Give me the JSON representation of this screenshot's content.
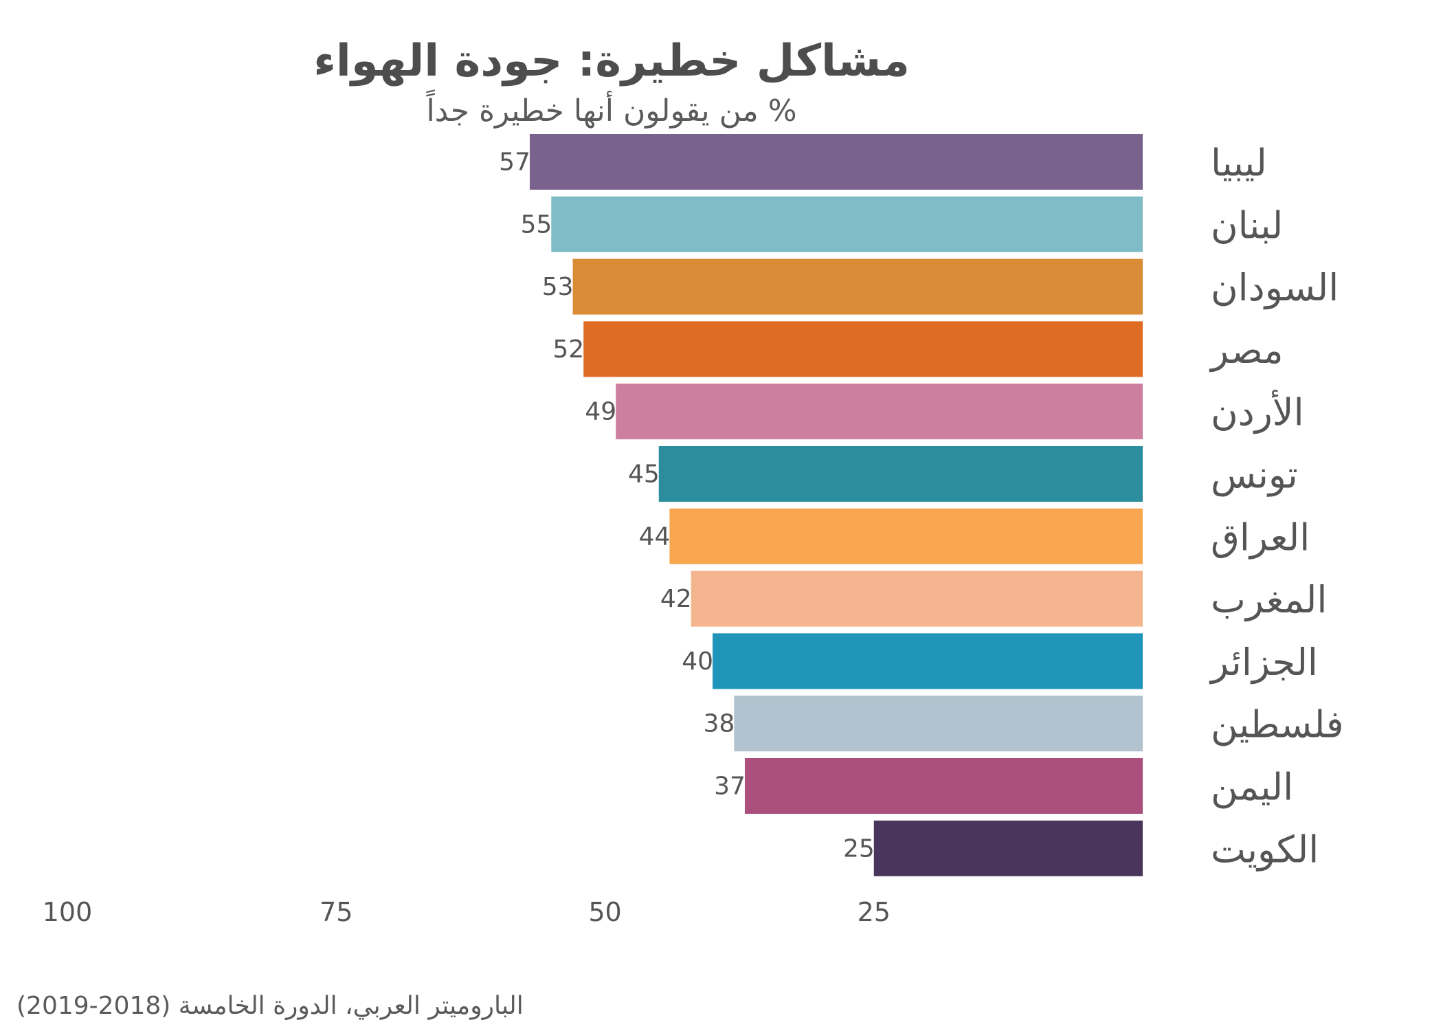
{
  "chart_data": {
    "type": "bar",
    "orientation": "horizontal",
    "title": "مشاكل خطيرة: جودة الهواء",
    "subtitle": "% من يقولون أنها خطيرة جداً",
    "source": "الباروميتر العربي، الدورة الخامسة (2018-2019)",
    "categories": [
      "ليبيا",
      "لبنان",
      "السودان",
      "مصر",
      "الأردن",
      "تونس",
      "العراق",
      "المغرب",
      "الجزائر",
      "فلسطين",
      "اليمن",
      "الكويت"
    ],
    "values": [
      57,
      55,
      53,
      52,
      49,
      45,
      44,
      42,
      40,
      38,
      37,
      25
    ],
    "data_labels": [
      "57",
      "55",
      "53",
      "52",
      "49",
      "45",
      "44",
      "42",
      "40",
      "38",
      "37",
      "25"
    ],
    "colors": [
      "#7a628f",
      "#80bbc8",
      "#d98b36",
      "#de6c22",
      "#cd7fa0",
      "#2c8e9d",
      "#f8a64f",
      "#f4b48d",
      "#2195b9",
      "#b2c3cf",
      "#ab4f7d",
      "#4a365d"
    ],
    "xlim": [
      0,
      100
    ],
    "x_reversed": true,
    "x_ticks": [
      100,
      75,
      50,
      25
    ],
    "x_tick_labels": [
      "100",
      "75",
      "50",
      "25"
    ],
    "xlabel": "",
    "ylabel": "",
    "grid": false,
    "legend": "none"
  }
}
